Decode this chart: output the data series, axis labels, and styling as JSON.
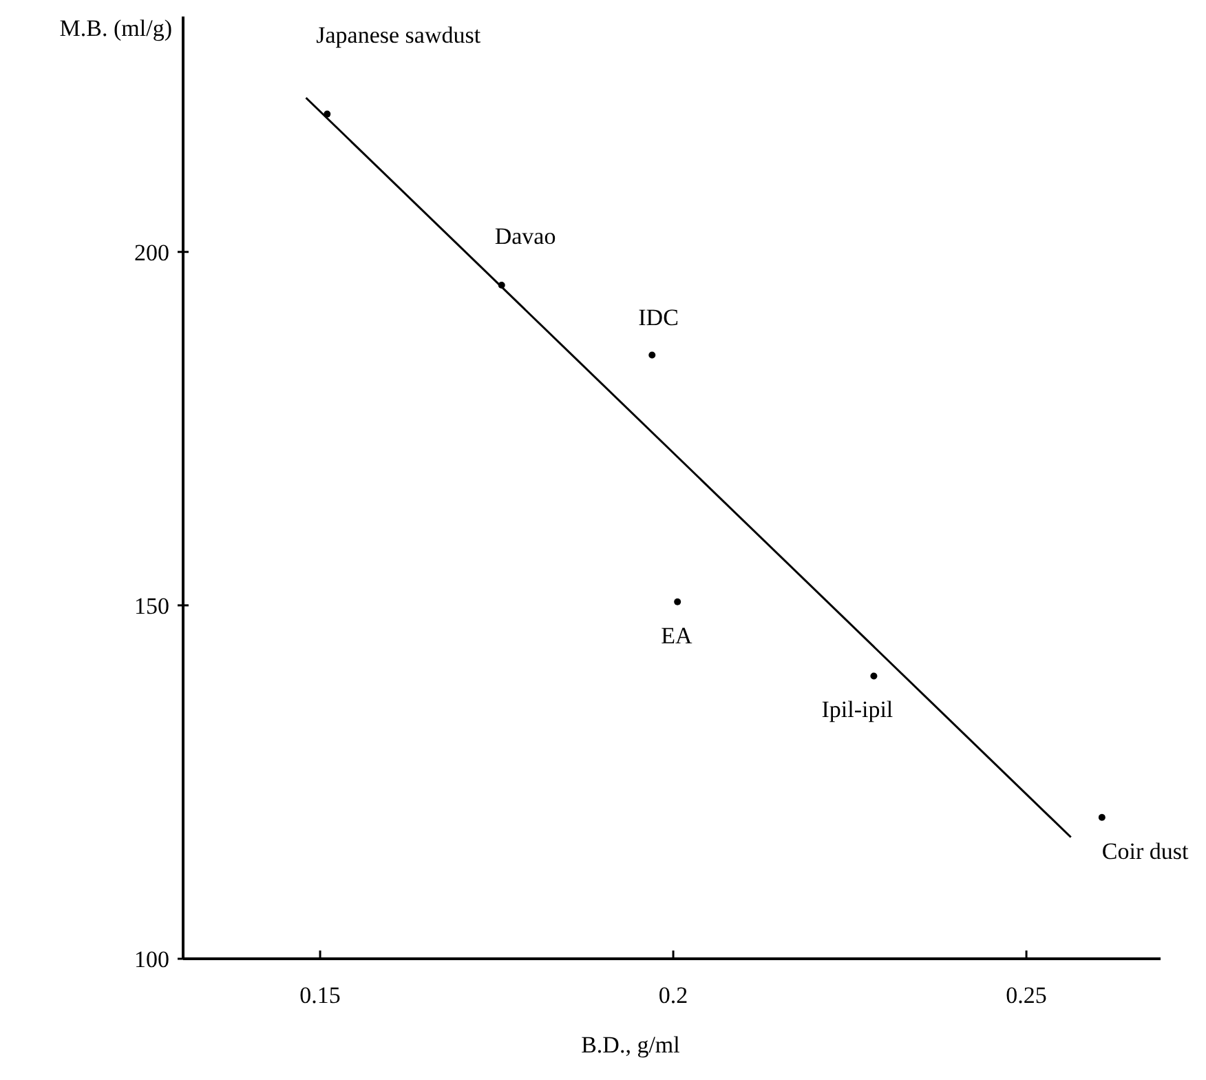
{
  "chart_data": {
    "type": "scatter",
    "xlabel": "B.D., g/ml",
    "ylabel": "M.B. (ml/g)",
    "xlim": [
      0.1306,
      0.269
    ],
    "ylim": [
      100,
      233.3
    ],
    "xticks": [
      0.15,
      0.2,
      0.25
    ],
    "yticks": [
      100,
      150,
      200
    ],
    "marker": "circle",
    "grid": false,
    "series": [
      {
        "color": "#000000",
        "x": [
          0.151,
          0.1757,
          0.197,
          0.2006,
          0.2284,
          0.2607
        ],
        "values": [
          219.5,
          195.3,
          185.4,
          150.5,
          140,
          120
        ]
      },
      {
        "type": "line",
        "color": "#000000",
        "x": [
          0.148,
          0.2563
        ],
        "values": [
          221.8,
          117.2
        ],
        "line_style": "solid",
        "marker": "none"
      }
    ],
    "annotations": [
      {
        "text": "Japanese sawdust",
        "x": 0.151,
        "y": 219.5
      },
      {
        "text": "Davao",
        "x": 0.1757,
        "y": 195.3
      },
      {
        "text": "IDC",
        "x": 0.197,
        "y": 185.4
      },
      {
        "text": "EA",
        "x": 0.2006,
        "y": 150.5
      },
      {
        "text": "Ipil-ipil",
        "x": 0.2284,
        "y": 140
      },
      {
        "text": "Coir dust",
        "x": 0.2607,
        "y": 120
      }
    ]
  }
}
